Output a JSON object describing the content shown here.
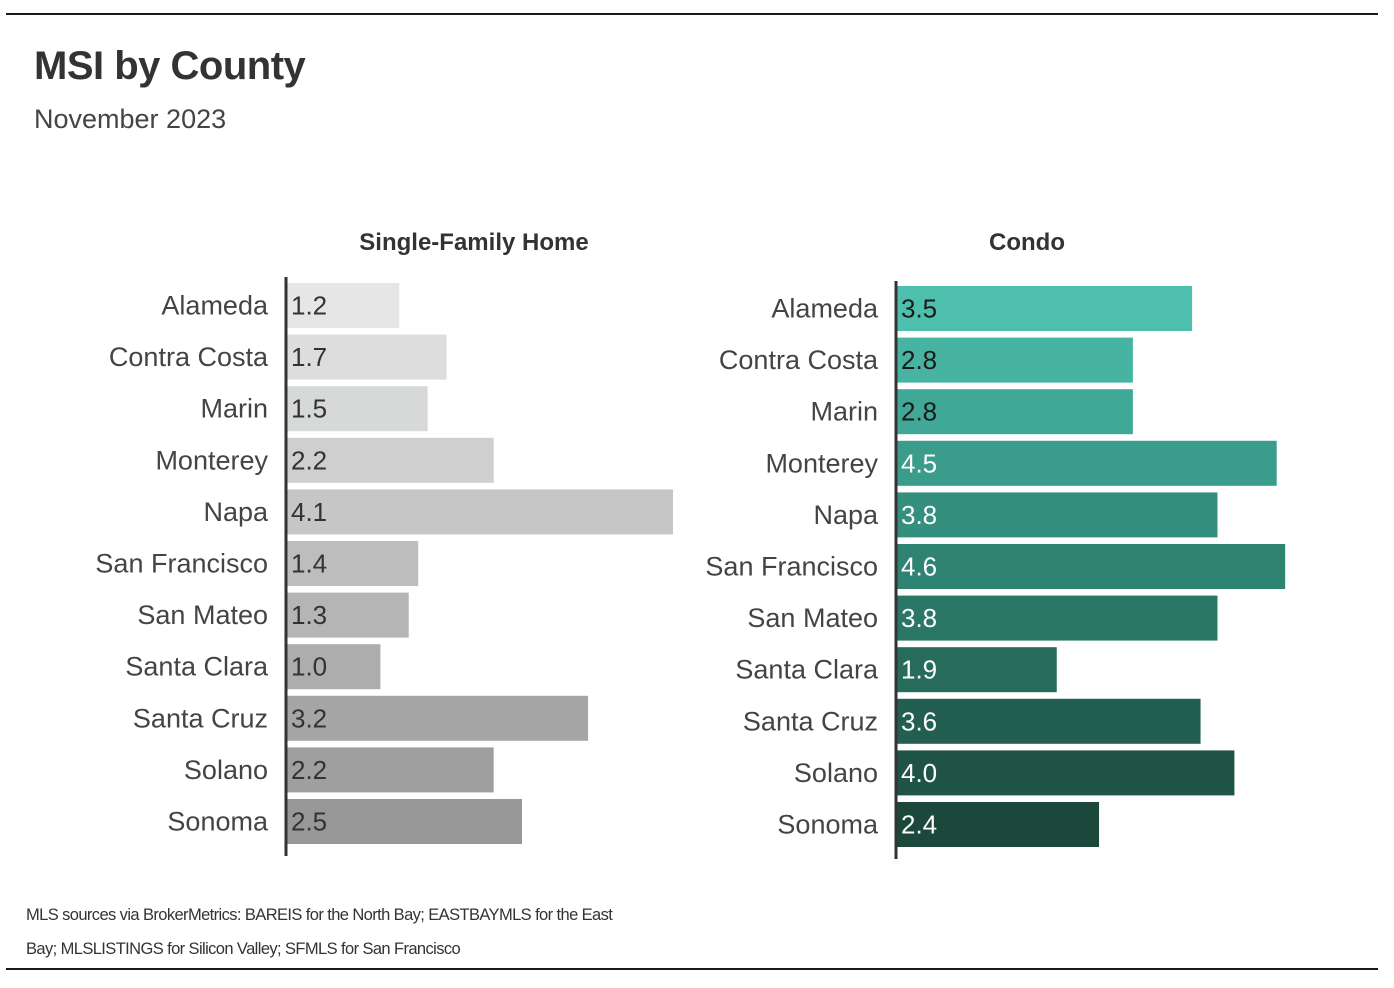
{
  "header": {
    "title": "MSI by County",
    "subtitle": "November 2023"
  },
  "footnote": "MLS sources via BrokerMetrics: BAREIS for the North Bay; EASTBAYMLS for the East Bay; MLSLISTINGS for Silicon Valley; SFMLS for San Francisco",
  "chart_data": [
    {
      "type": "bar",
      "orientation": "horizontal",
      "title": "Single-Family Home",
      "categories": [
        "Alameda",
        "Contra Costa",
        "Marin",
        "Monterey",
        "Napa",
        "San Francisco",
        "San Mateo",
        "Santa Clara",
        "Santa Cruz",
        "Solano",
        "Sonoma"
      ],
      "values": [
        1.2,
        1.7,
        1.5,
        2.2,
        4.1,
        1.4,
        1.3,
        1.0,
        3.2,
        2.2,
        2.5
      ],
      "value_labels": [
        "1.2",
        "1.7",
        "1.5",
        "2.2",
        "4.1",
        "1.4",
        "1.3",
        "1.0",
        "3.2",
        "2.2",
        "2.5"
      ],
      "colors": [
        "#e6e6e6",
        "#dddddd",
        "#d6d9d8",
        "#cfcfcf",
        "#c6c6c6",
        "#bdbdbd",
        "#b5b5b5",
        "#adadad",
        "#a6a6a6",
        "#9f9f9f",
        "#989898"
      ],
      "label_colors": [
        "#333333",
        "#333333",
        "#333333",
        "#333333",
        "#333333",
        "#333333",
        "#333333",
        "#333333",
        "#333333",
        "#333333",
        "#333333"
      ],
      "xlim": [
        0,
        4.6
      ]
    },
    {
      "type": "bar",
      "orientation": "horizontal",
      "title": "Condo",
      "categories": [
        "Alameda",
        "Contra Costa",
        "Marin",
        "Monterey",
        "Napa",
        "San Francisco",
        "San Mateo",
        "Santa Clara",
        "Santa Cruz",
        "Solano",
        "Sonoma"
      ],
      "values": [
        3.5,
        2.8,
        2.8,
        4.5,
        3.8,
        4.6,
        3.8,
        1.9,
        3.6,
        4.0,
        2.4
      ],
      "value_labels": [
        "3.5",
        "2.8",
        "2.8",
        "4.5",
        "3.8",
        "4.6",
        "3.8",
        "1.9",
        "3.6",
        "4.0",
        "2.4"
      ],
      "colors": [
        "#4fbfad",
        "#47b4a2",
        "#40a897",
        "#3a9c8b",
        "#348f7f",
        "#2f8372",
        "#2b7766",
        "#276b5b",
        "#235f50",
        "#1f5346",
        "#1c483c"
      ],
      "label_colors": [
        "#1a1a1a",
        "#1a1a1a",
        "#1a1a1a",
        "#ffffff",
        "#ffffff",
        "#ffffff",
        "#ffffff",
        "#ffffff",
        "#ffffff",
        "#ffffff",
        "#ffffff"
      ],
      "xlim": [
        0,
        4.6
      ]
    }
  ]
}
